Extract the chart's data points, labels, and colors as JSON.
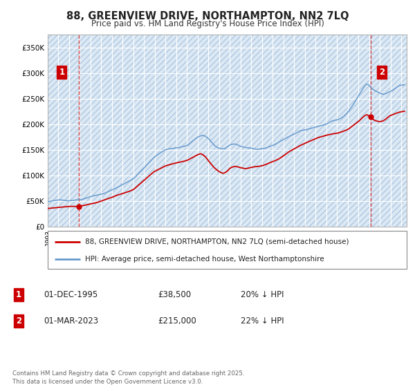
{
  "title": "88, GREENVIEW DRIVE, NORTHAMPTON, NN2 7LQ",
  "subtitle": "Price paid vs. HM Land Registry's House Price Index (HPI)",
  "background_color": "#ffffff",
  "plot_bg_color": "#dce9f5",
  "grid_color": "#ffffff",
  "red_line_color": "#cc0000",
  "blue_line_color": "#6699cc",
  "annotation_box_color": "#cc0000",
  "ylim": [
    0,
    375000
  ],
  "yticks": [
    0,
    50000,
    100000,
    150000,
    200000,
    250000,
    300000,
    350000
  ],
  "ytick_labels": [
    "£0",
    "£50K",
    "£100K",
    "£150K",
    "£200K",
    "£250K",
    "£300K",
    "£350K"
  ],
  "legend_label_red": "88, GREENVIEW DRIVE, NORTHAMPTON, NN2 7LQ (semi-detached house)",
  "legend_label_blue": "HPI: Average price, semi-detached house, West Northamptonshire",
  "annotation1_label": "1",
  "annotation1_date": "01-DEC-1995",
  "annotation1_price": "£38,500",
  "annotation1_hpi": "20% ↓ HPI",
  "annotation2_label": "2",
  "annotation2_date": "01-MAR-2023",
  "annotation2_price": "£215,000",
  "annotation2_hpi": "22% ↓ HPI",
  "footer": "Contains HM Land Registry data © Crown copyright and database right 2025.\nThis data is licensed under the Open Government Licence v3.0.",
  "sale1_year": 1995.92,
  "sale1_price": 38500,
  "sale2_year": 2023.17,
  "sale2_price": 215000,
  "xmin": 1993,
  "xmax": 2026.5
}
